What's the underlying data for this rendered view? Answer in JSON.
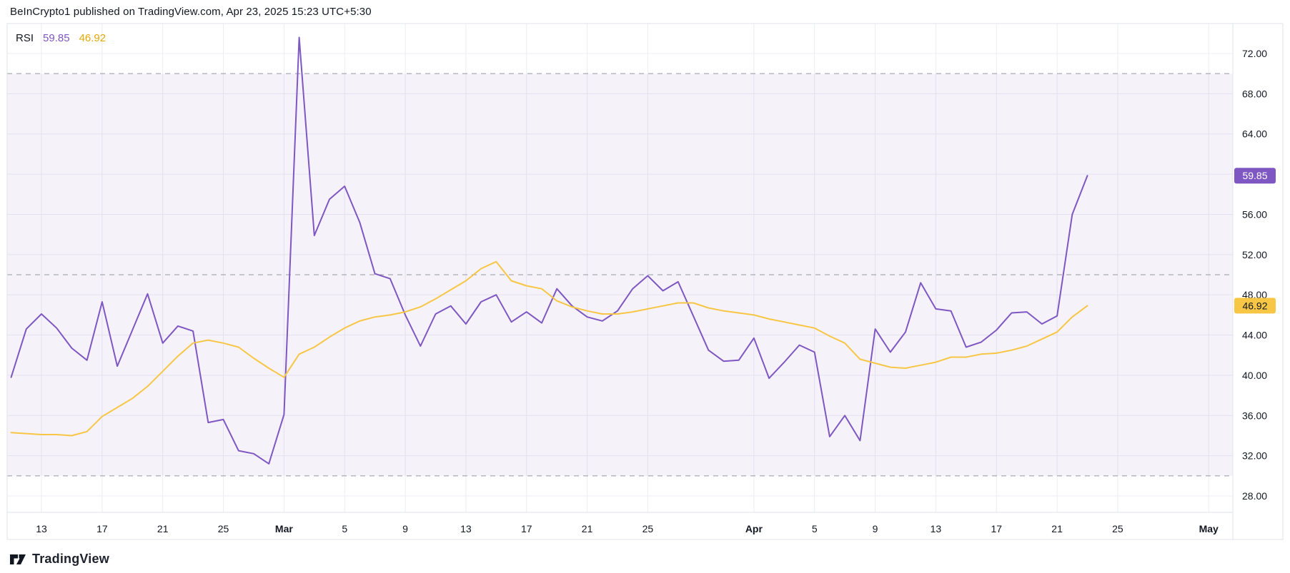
{
  "header": {
    "attribution": "BeInCrypto1 published on TradingView.com, Apr 23, 2025 15:23 UTC+5:30"
  },
  "legend": {
    "title": "RSI",
    "rsi_value": "59.85",
    "ma_value": "46.92"
  },
  "footer": {
    "logo_text": "TradingView"
  },
  "colors": {
    "rsi_line": "#7e57c2",
    "ma_line": "#f7c644",
    "band_fill": "#7e57c2",
    "band_opacity": 0.08,
    "level_dash": "#9598a1",
    "grid": "#ecedf4",
    "border": "#e0e3eb",
    "axis_text": "#131722",
    "rsi_badge_bg": "#7e57c2",
    "rsi_badge_text": "#ffffff",
    "ma_badge_bg": "#f7c644",
    "ma_badge_text": "#131722"
  },
  "chart_data": {
    "type": "line",
    "title": "RSI",
    "x_unit": "daily bars; day index 0 = first plotted point (Feb 11), last = Apr 23",
    "ylim": [
      26.4,
      75.0
    ],
    "grid": true,
    "legend_position": "top-left",
    "band": {
      "upper": 70,
      "lower": 30
    },
    "levels": [
      70,
      50,
      30
    ],
    "y_ticks": [
      {
        "value": 72,
        "label": "72.00"
      },
      {
        "value": 68,
        "label": "68.00"
      },
      {
        "value": 64,
        "label": "64.00"
      },
      {
        "value": 60,
        "label": "60.00"
      },
      {
        "value": 56,
        "label": "56.00"
      },
      {
        "value": 52,
        "label": "52.00"
      },
      {
        "value": 48,
        "label": "48.00"
      },
      {
        "value": 44,
        "label": "44.00"
      },
      {
        "value": 40,
        "label": "40.00"
      },
      {
        "value": 36,
        "label": "36.00"
      },
      {
        "value": 32,
        "label": "32.00"
      },
      {
        "value": 28,
        "label": "28.00"
      }
    ],
    "x_ticks": [
      {
        "label": "13",
        "day": 2,
        "bold": false
      },
      {
        "label": "17",
        "day": 6,
        "bold": false
      },
      {
        "label": "21",
        "day": 10,
        "bold": false
      },
      {
        "label": "25",
        "day": 14,
        "bold": false
      },
      {
        "label": "Mar",
        "day": 18,
        "bold": true
      },
      {
        "label": "5",
        "day": 22,
        "bold": false
      },
      {
        "label": "9",
        "day": 26,
        "bold": false
      },
      {
        "label": "13",
        "day": 30,
        "bold": false
      },
      {
        "label": "17",
        "day": 34,
        "bold": false
      },
      {
        "label": "21",
        "day": 38,
        "bold": false
      },
      {
        "label": "25",
        "day": 42,
        "bold": false
      },
      {
        "label": "Apr",
        "day": 49,
        "bold": true
      },
      {
        "label": "5",
        "day": 53,
        "bold": false
      },
      {
        "label": "9",
        "day": 57,
        "bold": false
      },
      {
        "label": "13",
        "day": 61,
        "bold": false
      },
      {
        "label": "17",
        "day": 65,
        "bold": false
      },
      {
        "label": "21",
        "day": 69,
        "bold": false
      },
      {
        "label": "25",
        "day": 73,
        "bold": false
      },
      {
        "label": "May",
        "day": 79,
        "bold": true
      }
    ],
    "series": [
      {
        "name": "RSI",
        "color": "#7e57c2",
        "last_value": 59.85,
        "values": [
          39.8,
          44.6,
          46.1,
          44.7,
          42.7,
          41.5,
          47.3,
          40.9,
          44.5,
          48.1,
          43.2,
          44.9,
          44.4,
          35.3,
          35.6,
          32.5,
          32.2,
          31.2,
          36.1,
          73.6,
          53.9,
          57.5,
          58.8,
          55.2,
          50.1,
          49.6,
          46.0,
          42.9,
          46.1,
          46.9,
          45.1,
          47.3,
          48.0,
          45.3,
          46.3,
          45.2,
          48.6,
          46.9,
          45.8,
          45.4,
          46.4,
          48.6,
          49.9,
          48.4,
          49.3,
          45.9,
          42.5,
          41.4,
          41.5,
          43.7,
          39.7,
          41.3,
          43.0,
          42.3,
          33.9,
          36.0,
          33.5,
          44.6,
          42.3,
          44.3,
          49.2,
          46.6,
          46.4,
          42.8,
          43.3,
          44.5,
          46.2,
          46.3,
          45.1,
          45.9,
          56.0,
          59.85
        ]
      },
      {
        "name": "RSI MA",
        "color": "#f7c644",
        "last_value": 46.92,
        "values": [
          34.3,
          34.2,
          34.1,
          34.1,
          34.0,
          34.4,
          35.9,
          36.8,
          37.7,
          38.9,
          40.4,
          41.9,
          43.2,
          43.5,
          43.2,
          42.8,
          41.7,
          40.7,
          39.8,
          42.1,
          42.8,
          43.8,
          44.7,
          45.4,
          45.8,
          46.0,
          46.3,
          46.8,
          47.6,
          48.5,
          49.4,
          50.6,
          51.3,
          49.4,
          48.9,
          48.6,
          47.4,
          46.8,
          46.4,
          46.1,
          46.1,
          46.3,
          46.6,
          46.9,
          47.2,
          47.2,
          46.7,
          46.4,
          46.2,
          46.0,
          45.6,
          45.3,
          45.0,
          44.7,
          43.9,
          43.2,
          41.6,
          41.2,
          40.8,
          40.7,
          41.0,
          41.3,
          41.8,
          41.8,
          42.1,
          42.2,
          42.5,
          42.9,
          43.6,
          44.3,
          45.8,
          46.92
        ]
      }
    ],
    "price_badges": [
      {
        "series": "RSI",
        "label": "59.85",
        "value": 59.85
      },
      {
        "series": "RSI MA",
        "label": "46.92",
        "value": 46.92
      }
    ]
  }
}
